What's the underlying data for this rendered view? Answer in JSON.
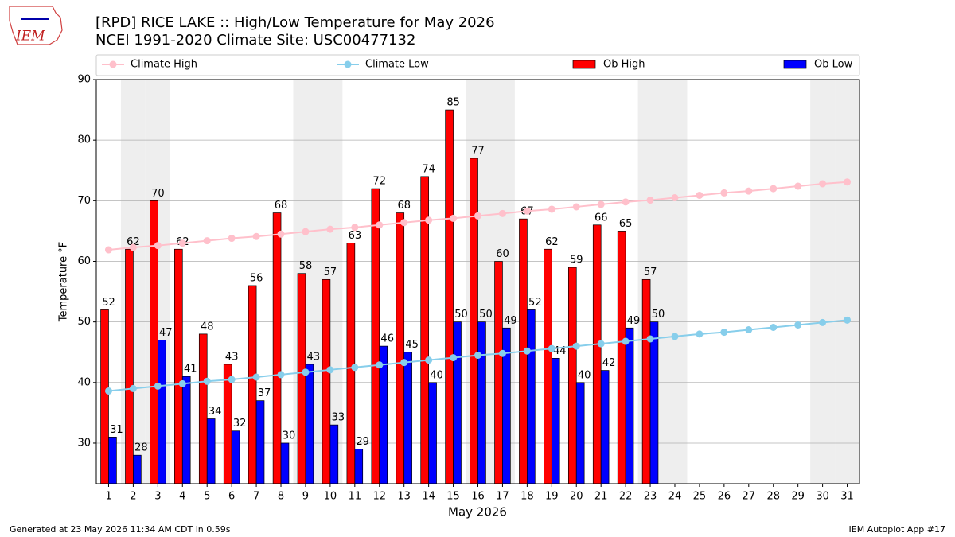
{
  "logo_text": "IEM",
  "chart_data": {
    "type": "bar",
    "title": "[RPD] RICE LAKE :: High/Low Temperature for May 2026",
    "subtitle": "NCEI 1991-2020 Climate Site: USC00477132",
    "xlabel": "May 2026",
    "ylabel": "Temperature °F",
    "x": [
      1,
      2,
      3,
      4,
      5,
      6,
      7,
      8,
      9,
      10,
      11,
      12,
      13,
      14,
      15,
      16,
      17,
      18,
      19,
      20,
      21,
      22,
      23,
      24,
      25,
      26,
      27,
      28,
      29,
      30,
      31
    ],
    "xlim": [
      0.5,
      31.5
    ],
    "xticks": [
      1,
      2,
      3,
      4,
      5,
      6,
      7,
      8,
      9,
      10,
      11,
      12,
      13,
      14,
      15,
      16,
      17,
      18,
      19,
      20,
      21,
      22,
      23,
      24,
      25,
      26,
      27,
      28,
      29,
      30,
      31
    ],
    "ylim": [
      23.3,
      90
    ],
    "yticks": [
      30,
      40,
      50,
      60,
      70,
      80,
      90
    ],
    "grid": true,
    "shaded_days": [
      2,
      3,
      9,
      10,
      16,
      17,
      23,
      24,
      30,
      31
    ],
    "shade_color": "#eeeeee",
    "series": [
      {
        "name": "Climate High",
        "kind": "line",
        "color": "#ffc0cb",
        "values": [
          61.9,
          62.3,
          62.6,
          63.0,
          63.4,
          63.8,
          64.1,
          64.5,
          64.9,
          65.3,
          65.6,
          66.0,
          66.4,
          66.8,
          67.1,
          67.5,
          67.9,
          68.3,
          68.6,
          69.0,
          69.4,
          69.8,
          70.1,
          70.5,
          70.9,
          71.3,
          71.6,
          72.0,
          72.4,
          72.8,
          73.1
        ]
      },
      {
        "name": "Climate Low",
        "kind": "line",
        "color": "#87ceeb",
        "values": [
          38.6,
          39.0,
          39.4,
          39.8,
          40.2,
          40.5,
          40.9,
          41.3,
          41.7,
          42.1,
          42.5,
          42.9,
          43.3,
          43.7,
          44.1,
          44.5,
          44.8,
          45.2,
          45.6,
          46.0,
          46.4,
          46.8,
          47.2,
          47.6,
          48.0,
          48.3,
          48.7,
          49.1,
          49.5,
          49.9,
          50.3
        ]
      },
      {
        "name": "Ob High",
        "kind": "bar",
        "color": "#ff0000",
        "values": [
          52,
          62,
          70,
          62,
          48,
          43,
          56,
          68,
          58,
          57,
          63,
          72,
          68,
          74,
          85,
          77,
          60,
          67,
          62,
          59,
          66,
          65,
          57,
          null,
          null,
          null,
          null,
          null,
          null,
          null,
          null
        ]
      },
      {
        "name": "Ob Low",
        "kind": "bar",
        "color": "#0000ff",
        "values": [
          31,
          28,
          47,
          41,
          34,
          32,
          37,
          30,
          43,
          33,
          29,
          46,
          45,
          40,
          50,
          50,
          49,
          52,
          44,
          40,
          42,
          49,
          50,
          null,
          null,
          null,
          null,
          null,
          null,
          null,
          null
        ]
      }
    ],
    "footer_left": "Generated at 23 May 2026 11:34 AM CDT in 0.59s",
    "footer_right": "IEM Autoplot App #17"
  }
}
